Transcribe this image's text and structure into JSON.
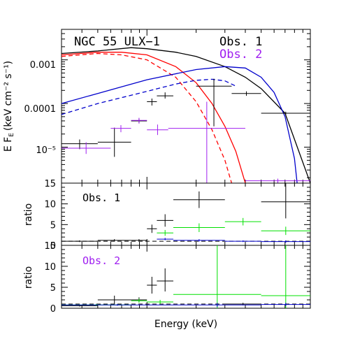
{
  "chart_data": [
    {
      "type": "scatter",
      "panel": "spectrum",
      "title": "NGC 55 ULX−1",
      "ylabel": "E F",
      "ylabel_sub": "E",
      "ylabel_unit": "(keV cm⁻² s⁻¹)",
      "yscale": "log",
      "ylim": [
        1.5e-06,
        0.005
      ],
      "y_tick_labels": [
        "0.001",
        "0.0001",
        "10⁻⁵"
      ],
      "xscale": "log",
      "xlim": [
        0.3,
        10
      ],
      "legend": [
        {
          "label": "Obs. 1",
          "color": "#000000"
        },
        {
          "label": "Obs. 2",
          "color": "#a020f0"
        }
      ],
      "series": [
        {
          "name": "Obs. 1",
          "color": "#000000",
          "points": [
            {
              "x0": 0.3,
              "x1": 0.5,
              "y": 1.2e-05,
              "yerr": [
                9e-06,
                1.5e-05
              ]
            },
            {
              "x0": 0.5,
              "x1": 0.8,
              "y": 1.3e-05,
              "yerr": [
                6e-06,
                2.8e-05
              ]
            },
            {
              "x0": 0.8,
              "x1": 1.0,
              "y": 4e-05,
              "yerr": [
                3.5e-05,
                4.5e-05
              ]
            },
            {
              "x0": 1.0,
              "x1": 1.15,
              "y": 0.00011,
              "yerr": [
                9e-05,
                0.00013
              ]
            },
            {
              "x0": 1.15,
              "x1": 1.45,
              "y": 0.00015,
              "yerr": [
                0.00013,
                0.00018
              ]
            },
            {
              "x0": 2.0,
              "x1": 3.3,
              "y": 0.00025,
              "yerr": [
                3e-05,
                0.00037
              ]
            },
            {
              "x0": 3.3,
              "x1": 5.0,
              "y": 0.00017,
              "yerr": [
                0.00015,
                0.00019
              ]
            },
            {
              "x0": 5.0,
              "x1": 10.0,
              "y": 6e-05,
              "yerr": [
                5.5e-05,
                6.5e-05
              ]
            }
          ]
        },
        {
          "name": "Obs. 2",
          "color": "#a020f0",
          "points": [
            {
              "x0": 0.3,
              "x1": 0.6,
              "y": 9.5e-06,
              "yerr": [
                7e-06,
                1.3e-05
              ]
            },
            {
              "x0": 0.6,
              "x1": 0.8,
              "y": 2.7e-05,
              "yerr": [
                2.2e-05,
                3.2e-05
              ]
            },
            {
              "x0": 0.8,
              "x1": 1.0,
              "y": 4.1e-05,
              "yerr": [
                3.5e-05,
                4.7e-05
              ]
            },
            {
              "x0": 1.0,
              "x1": 1.35,
              "y": 2.5e-05,
              "yerr": [
                1.9e-05,
                3.3e-05
              ]
            },
            {
              "x0": 1.35,
              "x1": 4.0,
              "y": 2.7e-05,
              "yerr": [
                1.5e-06,
                0.00011
              ]
            },
            {
              "x0": 4.0,
              "x1": 10.0,
              "y": 1.7e-06,
              "yerr": [
                1.5e-06,
                1.9e-06
              ]
            }
          ]
        }
      ],
      "model_curves": [
        {
          "component": "total",
          "color": "#000000",
          "style": "solid",
          "points": [
            [
              0.3,
              0.0014
            ],
            [
              0.5,
              0.0016
            ],
            [
              0.8,
              0.0019
            ],
            [
              1.0,
              0.0018
            ],
            [
              1.5,
              0.0015
            ],
            [
              2.0,
              0.0012
            ],
            [
              3.0,
              0.0007
            ],
            [
              4.0,
              0.0004
            ],
            [
              5.0,
              0.00022
            ],
            [
              7.0,
              6e-05
            ],
            [
              10.0,
              1.5e-06
            ]
          ]
        },
        {
          "component": "soft",
          "color": "#ff0000",
          "style": "solid",
          "points": [
            [
              0.3,
              0.0013
            ],
            [
              0.5,
              0.0015
            ],
            [
              0.7,
              0.0015
            ],
            [
              1.0,
              0.0013
            ],
            [
              1.5,
              0.0007
            ],
            [
              2.0,
              0.0003
            ],
            [
              2.5,
              0.0001
            ],
            [
              3.0,
              3e-05
            ],
            [
              3.5,
              8e-06
            ],
            [
              4.0,
              1.5e-06
            ]
          ]
        },
        {
          "component": "soft-obs2",
          "color": "#ff0000",
          "style": "dashed",
          "points": [
            [
              0.3,
              0.0012
            ],
            [
              0.5,
              0.0014
            ],
            [
              0.7,
              0.0013
            ],
            [
              1.0,
              0.001
            ],
            [
              1.5,
              0.0004
            ],
            [
              2.0,
              0.00011
            ],
            [
              2.5,
              2.5e-05
            ],
            [
              3.0,
              5e-06
            ],
            [
              3.3,
              1.5e-06
            ]
          ]
        },
        {
          "component": "hard",
          "color": "#0000cc",
          "style": "solid",
          "points": [
            [
              0.3,
              0.0001
            ],
            [
              0.5,
              0.00017
            ],
            [
              1.0,
              0.00035
            ],
            [
              2.0,
              0.0006
            ],
            [
              3.0,
              0.0007
            ],
            [
              4.0,
              0.00065
            ],
            [
              5.0,
              0.0004
            ],
            [
              6.0,
              0.00018
            ],
            [
              7.0,
              5e-05
            ],
            [
              8.0,
              5.5e-06
            ],
            [
              8.3,
              1.5e-06
            ]
          ]
        },
        {
          "component": "hard-obs2",
          "color": "#0000cc",
          "style": "dashed",
          "points": [
            [
              0.3,
              5.6e-05
            ],
            [
              0.5,
              0.0001
            ],
            [
              1.0,
              0.00019
            ],
            [
              1.5,
              0.00028
            ],
            [
              2.0,
              0.00034
            ],
            [
              2.5,
              0.00036
            ],
            [
              3.0,
              0.00033
            ],
            [
              3.5,
              0.00025
            ]
          ]
        }
      ]
    },
    {
      "type": "scatter",
      "panel": "ratio-obs1",
      "label": "Obs. 1",
      "label_color": "#000000",
      "ylabel": "ratio",
      "ylim": [
        0,
        15
      ],
      "yticks": [
        0,
        5,
        10,
        15
      ],
      "xscale": "log",
      "xlim": [
        0.3,
        10
      ],
      "reference_line": 1,
      "series": [
        {
          "color": "#000000",
          "points": [
            {
              "x0": 0.3,
              "x1": 0.5,
              "y": 1.0,
              "yerr": [
                0.8,
                1.2
              ]
            },
            {
              "x0": 0.5,
              "x1": 0.8,
              "y": 1.2,
              "yerr": [
                0.9,
                1.5
              ]
            },
            {
              "x0": 0.8,
              "x1": 1.0,
              "y": 1.2,
              "yerr": [
                0.9,
                1.5
              ]
            },
            {
              "x0": 1.0,
              "x1": 1.15,
              "y": 4.0,
              "yerr": [
                3.0,
                5.0
              ]
            },
            {
              "x0": 1.15,
              "x1": 1.45,
              "y": 6.0,
              "yerr": [
                4.5,
                7.5
              ]
            },
            {
              "x0": 1.45,
              "x1": 3.0,
              "y": 11.0,
              "yerr": [
                9.0,
                13.0
              ]
            },
            {
              "x0": 5.0,
              "x1": 10.0,
              "y": 10.5,
              "yerr": [
                6.5,
                15.0
              ]
            }
          ]
        },
        {
          "color": "#00e000",
          "points": [
            {
              "x0": 1.15,
              "x1": 1.45,
              "y": 3.0,
              "yerr": [
                2.3,
                3.7
              ]
            },
            {
              "x0": 1.45,
              "x1": 3.0,
              "y": 4.3,
              "yerr": [
                3.2,
                5.3
              ]
            },
            {
              "x0": 3.0,
              "x1": 5.0,
              "y": 5.7,
              "yerr": [
                4.8,
                6.6
              ]
            },
            {
              "x0": 5.0,
              "x1": 10.0,
              "y": 3.5,
              "yerr": [
                2.5,
                4.5
              ]
            }
          ]
        },
        {
          "color": "#0000cc",
          "points": [
            {
              "x0": 1.15,
              "x1": 1.45,
              "y": 1.5,
              "yerr": [
                1.2,
                1.8
              ]
            },
            {
              "x0": 1.45,
              "x1": 3.0,
              "y": 1.2,
              "yerr": [
                0.9,
                1.5
              ]
            },
            {
              "x0": 3.0,
              "x1": 5.0,
              "y": 1.0,
              "yerr": [
                0.8,
                1.2
              ]
            },
            {
              "x0": 5.0,
              "x1": 10.0,
              "y": 0.9,
              "yerr": [
                0.6,
                1.2
              ]
            }
          ]
        }
      ]
    },
    {
      "type": "scatter",
      "panel": "ratio-obs2",
      "label": "Obs. 2",
      "label_color": "#a020f0",
      "ylabel": "ratio",
      "xlabel": "Energy (keV)",
      "ylim": [
        0,
        15
      ],
      "yticks": [
        0,
        5,
        10,
        15
      ],
      "xscale": "log",
      "xlim": [
        0.3,
        10
      ],
      "reference_line": 1,
      "series": [
        {
          "color": "#000000",
          "points": [
            {
              "x0": 0.3,
              "x1": 0.5,
              "y": 0.6,
              "yerr": [
                0.4,
                0.8
              ]
            },
            {
              "x0": 0.5,
              "x1": 0.8,
              "y": 2.0,
              "yerr": [
                1.0,
                3.0
              ]
            },
            {
              "x0": 0.8,
              "x1": 1.0,
              "y": 2.0,
              "yerr": [
                1.5,
                2.6
              ]
            },
            {
              "x0": 1.0,
              "x1": 1.15,
              "y": 5.5,
              "yerr": [
                3.5,
                7.5
              ]
            },
            {
              "x0": 1.15,
              "x1": 1.45,
              "y": 6.5,
              "yerr": [
                4.0,
                9.5
              ]
            },
            {
              "x0": 3.0,
              "x1": 5.0,
              "y": 1.0,
              "yerr": [
                0.7,
                1.3
              ]
            }
          ]
        },
        {
          "color": "#00e000",
          "points": [
            {
              "x0": 0.3,
              "x1": 0.8,
              "y": 0.8,
              "yerr": [
                0.6,
                1.0
              ]
            },
            {
              "x0": 0.8,
              "x1": 1.0,
              "y": 1.8,
              "yerr": [
                1.3,
                2.3
              ]
            },
            {
              "x0": 1.0,
              "x1": 1.45,
              "y": 1.5,
              "yerr": [
                1.0,
                2.0
              ]
            },
            {
              "x0": 1.45,
              "x1": 5.0,
              "y": 3.3,
              "yerr": [
                0.0,
                15.0
              ]
            },
            {
              "x0": 5.0,
              "x1": 10.0,
              "y": 3.0,
              "yerr": [
                0.0,
                15.0
              ]
            }
          ]
        },
        {
          "color": "#0000cc",
          "points": [
            {
              "x0": 0.3,
              "x1": 1.45,
              "y": 0.8,
              "yerr": [
                0.6,
                1.0
              ]
            },
            {
              "x0": 1.45,
              "x1": 5.0,
              "y": 0.8,
              "yerr": [
                0.3,
                1.3
              ]
            },
            {
              "x0": 5.0,
              "x1": 10.0,
              "y": 0.9,
              "yerr": [
                0.5,
                1.3
              ]
            }
          ]
        }
      ]
    }
  ]
}
